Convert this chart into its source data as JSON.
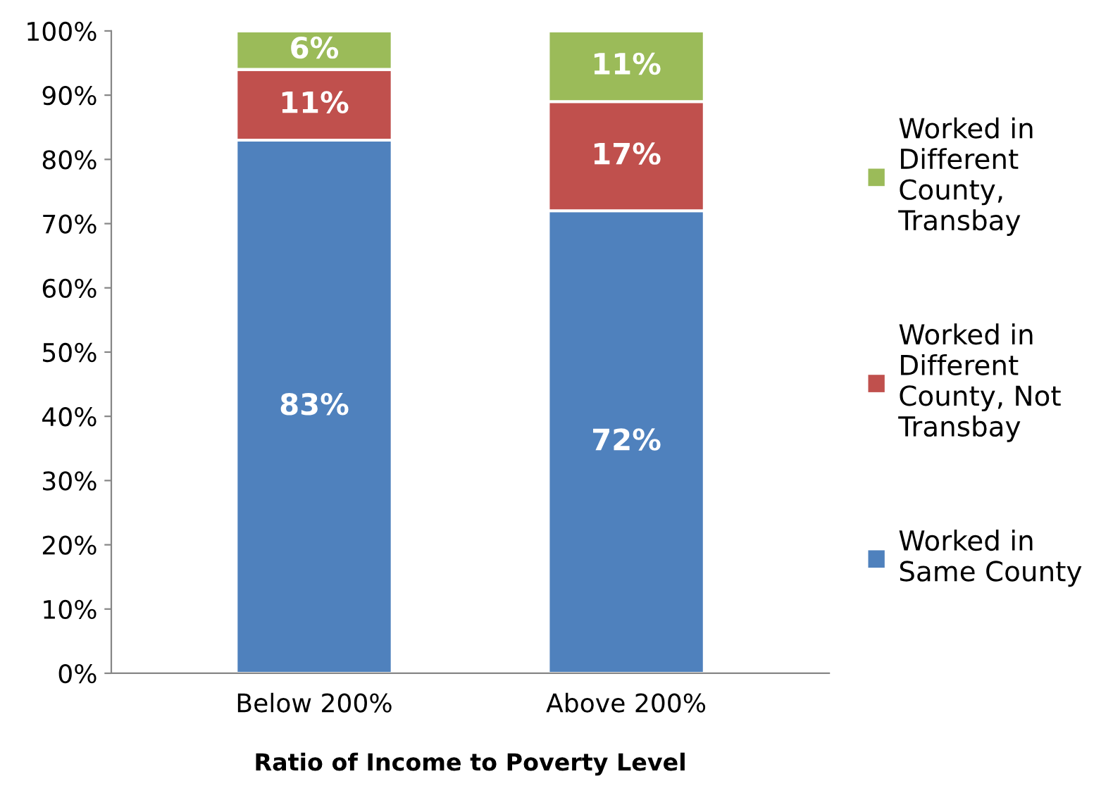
{
  "chart_data": {
    "type": "bar",
    "stacked": true,
    "xlabel": "Ratio of Income to Poverty Level",
    "categories": [
      "Below 200%",
      "Above 200%"
    ],
    "series": [
      {
        "name": "Worked in\nSame County",
        "color": "#4f81bd",
        "values": [
          83,
          72
        ],
        "value_labels": [
          "83%",
          "72%"
        ]
      },
      {
        "name": "Worked in\nDifferent\nCounty, Not\nTransbay",
        "color": "#c0504d",
        "values": [
          11,
          17
        ],
        "value_labels": [
          "11%",
          "17%"
        ]
      },
      {
        "name": "Worked in\nDifferent\nCounty,\nTransbay",
        "color": "#9bbb59",
        "values": [
          6,
          11
        ],
        "value_labels": [
          "6%",
          "11%"
        ]
      }
    ],
    "ylim": [
      0,
      100
    ],
    "yticks": [
      {
        "value": 0,
        "label": "0%"
      },
      {
        "value": 10,
        "label": "10%"
      },
      {
        "value": 20,
        "label": "20%"
      },
      {
        "value": 30,
        "label": "30%"
      },
      {
        "value": 40,
        "label": "40%"
      },
      {
        "value": 50,
        "label": "50%"
      },
      {
        "value": 60,
        "label": "60%"
      },
      {
        "value": 70,
        "label": "70%"
      },
      {
        "value": 80,
        "label": "80%"
      },
      {
        "value": 90,
        "label": "90%"
      },
      {
        "value": 100,
        "label": "100%"
      }
    ],
    "grid": false,
    "legend": "right"
  }
}
